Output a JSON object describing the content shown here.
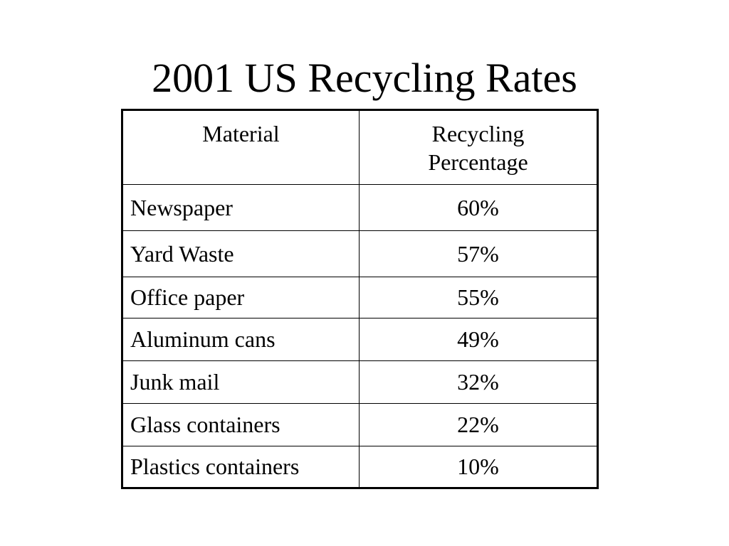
{
  "title": "2001 US Recycling Rates",
  "table": {
    "headers": {
      "material": "Material",
      "rate_line1": "Recycling",
      "rate_line2": "Percentage"
    },
    "rows": [
      {
        "material": "Newspaper",
        "rate": "60%"
      },
      {
        "material": "Yard Waste",
        "rate": "57%"
      },
      {
        "material": "Office paper",
        "rate": "55%"
      },
      {
        "material": "Aluminum cans",
        "rate": "49%"
      },
      {
        "material": "Junk mail",
        "rate": "32%"
      },
      {
        "material": "Glass containers",
        "rate": "22%"
      },
      {
        "material": "Plastics containers",
        "rate": "10%"
      }
    ]
  }
}
